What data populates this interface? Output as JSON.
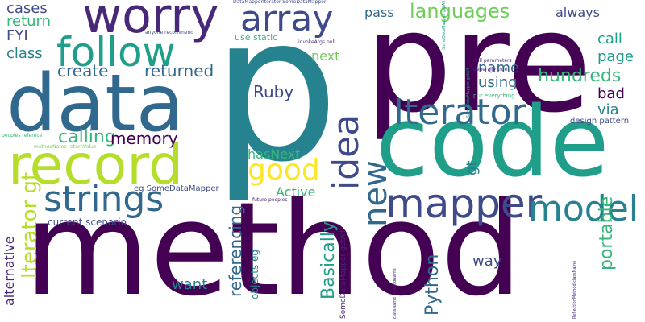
{
  "palette": {
    "background": "#ffffff",
    "dark_purple": "#440154",
    "purple": "#482878",
    "indigo": "#3e4a89",
    "blue": "#31688e",
    "teal_blue": "#26828e",
    "teal": "#1f9e89",
    "green": "#35b779",
    "light_green": "#6ece58",
    "lime": "#b5de2b",
    "yellow": "#fde725"
  },
  "words": [
    {
      "text": "method"
    },
    {
      "text": "pre"
    },
    {
      "text": "p"
    },
    {
      "text": "code"
    },
    {
      "text": "data"
    },
    {
      "text": "record"
    },
    {
      "text": "worry"
    },
    {
      "text": "follow"
    },
    {
      "text": "array"
    },
    {
      "text": "mapper"
    },
    {
      "text": "strings"
    },
    {
      "text": "Iterator"
    },
    {
      "text": "model"
    },
    {
      "text": "idea"
    },
    {
      "text": "new"
    },
    {
      "text": "good"
    },
    {
      "text": "languages"
    },
    {
      "text": "Iterator gt"
    },
    {
      "text": "hundreds"
    },
    {
      "text": "portable"
    },
    {
      "text": "Basically"
    },
    {
      "text": "Python"
    },
    {
      "text": "referencing"
    },
    {
      "text": "calling"
    },
    {
      "text": "memory"
    },
    {
      "text": "create"
    },
    {
      "text": "returned"
    },
    {
      "text": "Ruby"
    },
    {
      "text": "cases"
    },
    {
      "text": "return"
    },
    {
      "text": "class"
    },
    {
      "text": "FYI"
    },
    {
      "text": "pass"
    },
    {
      "text": "always"
    },
    {
      "text": "call"
    },
    {
      "text": "page"
    },
    {
      "text": "next"
    },
    {
      "text": "name"
    },
    {
      "text": "using"
    },
    {
      "text": "bad"
    },
    {
      "text": "via"
    },
    {
      "text": "gt"
    },
    {
      "text": "hasNext"
    },
    {
      "text": "Active"
    },
    {
      "text": "way"
    },
    {
      "text": "want"
    },
    {
      "text": "alternative"
    },
    {
      "text": "current scenario"
    },
    {
      "text": "objects eg"
    },
    {
      "text": "eg SomeDataMapper"
    },
    {
      "text": "use static"
    },
    {
      "text": "design pattern"
    },
    {
      "text": "SomeDataMapper getAll"
    },
    {
      "text": "DataMapperIterator SomeDataMapper"
    },
    {
      "text": "anyone recommend"
    },
    {
      "text": "invokeArgs null"
    },
    {
      "text": "null parameters"
    },
    {
      "text": "generally true"
    },
    {
      "text": "put everything"
    },
    {
      "text": "SomeDataMapper getAll"
    },
    {
      "text": "SomeDataMapper getAll"
    },
    {
      "text": "peoples refernce"
    },
    {
      "text": "methodName returnValue"
    },
    {
      "text": "future peoples"
    },
    {
      "text": "className methodName"
    },
    {
      "text": "ReflectionMethod className"
    }
  ]
}
